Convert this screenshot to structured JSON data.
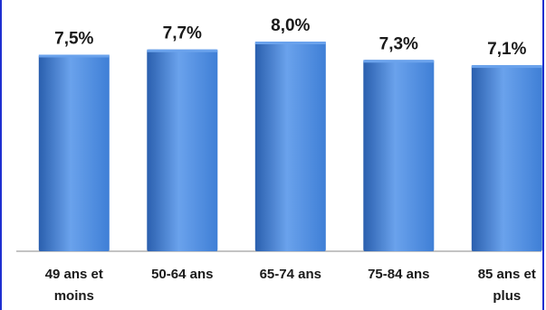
{
  "chart_data": {
    "type": "bar",
    "categories": [
      "49 ans et moins",
      "50-64 ans",
      "65-74 ans",
      "75-84 ans",
      "85 ans et plus"
    ],
    "category_lines": [
      [
        "49 ans et",
        "moins"
      ],
      [
        "50-64 ans"
      ],
      [
        "65-74 ans"
      ],
      [
        "75-84 ans"
      ],
      [
        "85 ans et",
        "plus"
      ]
    ],
    "values": [
      7.5,
      7.7,
      8.0,
      7.3,
      7.1
    ],
    "data_labels": [
      "7,5%",
      "7,7%",
      "8,0%",
      "7,3%",
      "7,1%"
    ],
    "title": "",
    "xlabel": "",
    "ylabel": "",
    "ylim": [
      0,
      8.0
    ],
    "grid": false,
    "legend": "none",
    "bar_color": "#3f7fd6",
    "bar_color_dark": "#2a5fae",
    "bar_color_light": "#6aa2ec"
  }
}
